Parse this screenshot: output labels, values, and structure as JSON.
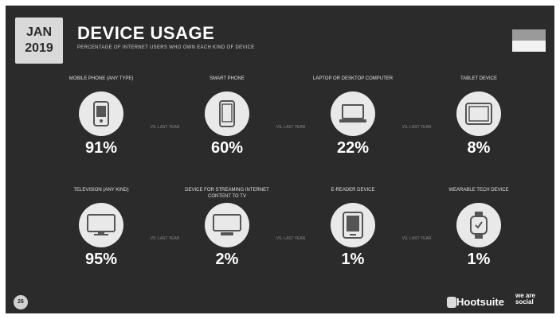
{
  "header": {
    "date_month": "JAN",
    "date_year": "2019",
    "title": "DEVICE USAGE",
    "subtitle": "PERCENTAGE OF INTERNET USERS WHO OWN EACH KIND OF DEVICE"
  },
  "vs_label": "VS. LAST YEAR",
  "row1": [
    {
      "label": "MOBILE PHONE (ANY TYPE)",
      "value": "91%",
      "icon": "mobile-phone-icon"
    },
    {
      "label": "SMART PHONE",
      "value": "60%",
      "icon": "smartphone-icon"
    },
    {
      "label": "LAPTOP OR DESKTOP COMPUTER",
      "value": "22%",
      "icon": "laptop-icon"
    },
    {
      "label": "TABLET DEVICE",
      "value": "8%",
      "icon": "tablet-icon"
    }
  ],
  "row2": [
    {
      "label": "TELEVISION (ANY KIND)",
      "value": "95%",
      "icon": "television-icon"
    },
    {
      "label": "DEVICE FOR STREAMING INTERNET CONTENT TO TV",
      "value": "2%",
      "icon": "streaming-device-icon"
    },
    {
      "label": "E-READER DEVICE",
      "value": "1%",
      "icon": "ereader-icon"
    },
    {
      "label": "WEARABLE TECH DEVICE",
      "value": "1%",
      "icon": "smartwatch-icon"
    }
  ],
  "footer": {
    "page_number": "26",
    "brand": "Hootsuite",
    "partner": "we are social"
  },
  "colors": {
    "background": "#2b2b2b",
    "circle": "#e9e9e9",
    "badge": "#d9d9d9"
  }
}
